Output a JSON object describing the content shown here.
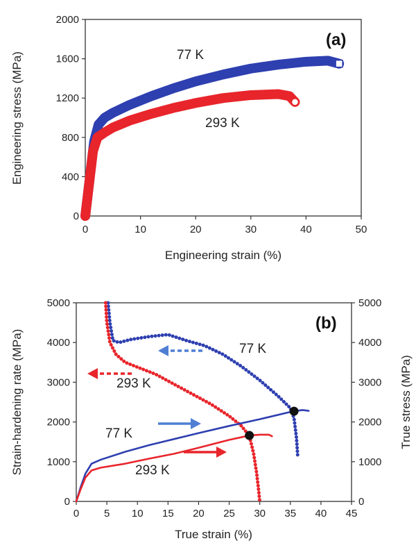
{
  "chart_data": [
    {
      "type": "line",
      "panel_label": "(a)",
      "xlabel": "Engineering strain (%)",
      "ylabel": "Engineering stress (MPa)",
      "xlim": [
        0,
        50
      ],
      "ylim": [
        0,
        2000
      ],
      "xticks": [
        0,
        10,
        20,
        30,
        40,
        50
      ],
      "yticks": [
        0,
        400,
        800,
        1200,
        1600,
        2000
      ],
      "series": [
        {
          "name": "77 K",
          "color": "#2e3fb0",
          "marker": "square",
          "x": [
            0,
            0.8,
            1.6,
            2.4,
            3.5,
            5,
            8,
            12,
            16,
            20,
            25,
            30,
            35,
            40,
            44,
            46
          ],
          "y": [
            0,
            380,
            760,
            930,
            1000,
            1050,
            1130,
            1220,
            1300,
            1370,
            1440,
            1500,
            1540,
            1570,
            1580,
            1550
          ]
        },
        {
          "name": "293 K",
          "color": "#e8252b",
          "marker": "circle",
          "x": [
            0,
            0.7,
            1.4,
            2.2,
            3.5,
            5,
            8,
            12,
            16,
            20,
            25,
            30,
            35,
            37,
            38
          ],
          "y": [
            0,
            330,
            660,
            800,
            850,
            900,
            970,
            1040,
            1100,
            1150,
            1200,
            1230,
            1240,
            1220,
            1160
          ]
        }
      ],
      "annotations": [
        "77 K",
        "293 K"
      ]
    },
    {
      "type": "line",
      "panel_label": "(b)",
      "xlabel": "True strain (%)",
      "ylabel": "Strain-hardening rate (MPa)",
      "ylabel_right": "True stress (MPa)",
      "xlim": [
        0,
        45
      ],
      "ylim": [
        0,
        5000
      ],
      "ylim_right": [
        0,
        5000
      ],
      "xticks": [
        0,
        5,
        10,
        15,
        20,
        25,
        30,
        35,
        40,
        45
      ],
      "yticks": [
        0,
        1000,
        2000,
        3000,
        4000,
        5000
      ],
      "series": [
        {
          "name": "77 K strain-hardening rate",
          "color": "#2e3fb0",
          "style": "dotted",
          "x": [
            5.2,
            5.5,
            6,
            7,
            9,
            12,
            15,
            18,
            21,
            24,
            27,
            30,
            33,
            35,
            35.6,
            36,
            36.2
          ],
          "y": [
            5000,
            4500,
            4050,
            4000,
            4080,
            4150,
            4200,
            4050,
            3920,
            3700,
            3400,
            3050,
            2650,
            2350,
            2100,
            1600,
            1150
          ]
        },
        {
          "name": "293 K strain-hardening rate",
          "color": "#e8252b",
          "style": "dotted",
          "x": [
            4.8,
            5,
            5.5,
            6.5,
            8,
            10,
            13,
            16,
            19,
            22,
            25,
            27,
            28.3,
            29,
            29.5,
            29.8,
            30
          ],
          "y": [
            5000,
            4500,
            4000,
            3700,
            3500,
            3380,
            3200,
            2950,
            2700,
            2450,
            2150,
            1900,
            1650,
            1200,
            700,
            300,
            0
          ]
        },
        {
          "name": "77 K true stress",
          "color": "#2e3fb0",
          "style": "solid",
          "x": [
            0,
            0.7,
            1.5,
            2.5,
            4,
            8,
            12,
            16,
            20,
            25,
            30,
            35.5,
            37,
            38
          ],
          "y": [
            0,
            350,
            700,
            950,
            1050,
            1250,
            1420,
            1570,
            1720,
            1900,
            2070,
            2270,
            2300,
            2280
          ]
        },
        {
          "name": "293 K true stress",
          "color": "#e8252b",
          "style": "solid",
          "x": [
            0,
            0.7,
            1.5,
            2.5,
            4,
            8,
            12,
            16,
            20,
            25,
            28.3,
            30,
            31.5,
            32
          ],
          "y": [
            0,
            300,
            600,
            780,
            850,
            950,
            1080,
            1200,
            1350,
            1550,
            1660,
            1680,
            1680,
            1640
          ]
        }
      ],
      "intersection_points": [
        {
          "x": 28.3,
          "y": 1660
        },
        {
          "x": 35.6,
          "y": 2270
        }
      ],
      "annotations": [
        "77 K",
        "293 K",
        "77 K",
        "293 K"
      ]
    }
  ]
}
